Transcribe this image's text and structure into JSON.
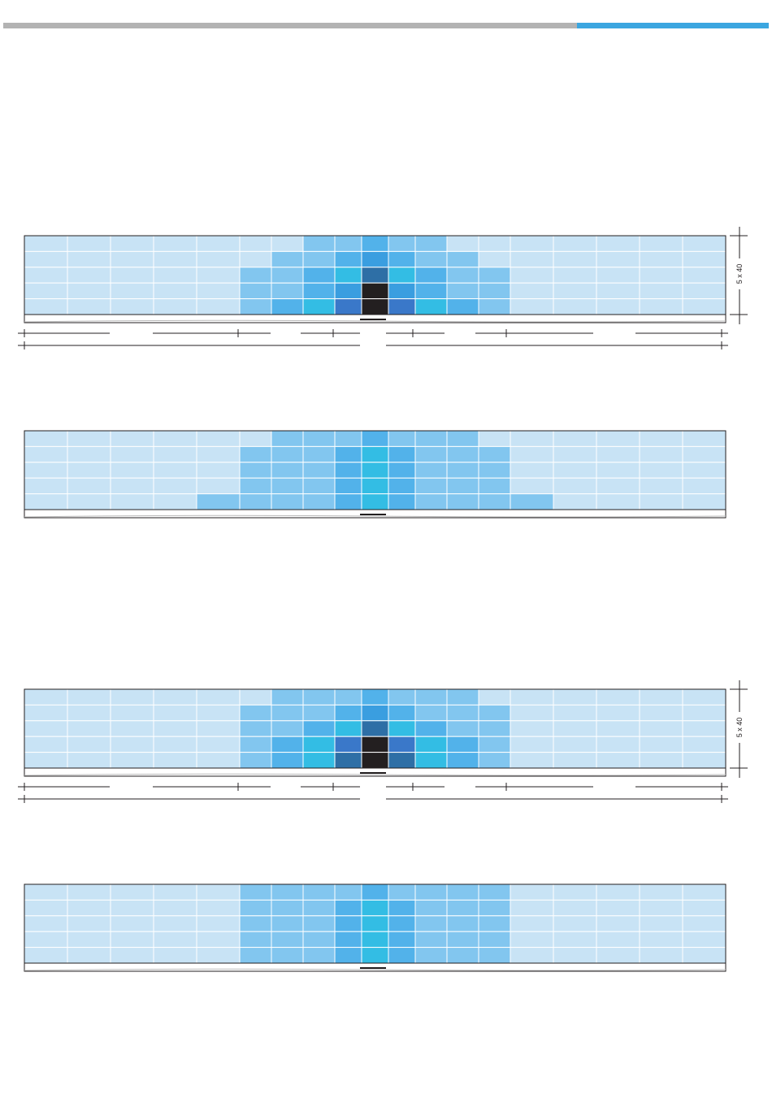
{
  "colors": {
    "top_bar_grey": "#b3b3b3",
    "top_bar_blue": "#3ba6e0",
    "outline": "#231f20"
  },
  "palette": {
    "0": "#c8e3f5",
    "1": "#82c6ef",
    "2": "#52b2ea",
    "3": "#33bde4",
    "4": "#3a9ee0",
    "5": "#3a78c9",
    "6": "#2e6fa6",
    "7": "#231f20"
  },
  "diagrams": [
    {
      "dimension_label": "5 x 40",
      "show_dimension": true,
      "show_baseline_lines": true,
      "grid": [
        [
          0,
          0,
          0,
          0,
          0,
          0,
          0,
          1,
          1,
          2,
          1,
          1,
          0,
          0,
          0,
          0,
          0,
          0,
          0
        ],
        [
          0,
          0,
          0,
          0,
          0,
          0,
          1,
          1,
          2,
          4,
          2,
          1,
          1,
          0,
          0,
          0,
          0,
          0,
          0
        ],
        [
          0,
          0,
          0,
          0,
          0,
          1,
          1,
          2,
          3,
          6,
          3,
          2,
          1,
          1,
          0,
          0,
          0,
          0,
          0
        ],
        [
          0,
          0,
          0,
          0,
          0,
          1,
          1,
          2,
          4,
          7,
          4,
          2,
          1,
          1,
          0,
          0,
          0,
          0,
          0
        ],
        [
          0,
          0,
          0,
          0,
          0,
          1,
          2,
          3,
          5,
          7,
          5,
          3,
          2,
          1,
          0,
          0,
          0,
          0,
          0
        ]
      ]
    },
    {
      "dimension_label": "",
      "show_dimension": false,
      "show_baseline_lines": false,
      "grid": [
        [
          0,
          0,
          0,
          0,
          0,
          0,
          1,
          1,
          1,
          2,
          1,
          1,
          1,
          0,
          0,
          0,
          0,
          0,
          0
        ],
        [
          0,
          0,
          0,
          0,
          0,
          1,
          1,
          1,
          2,
          3,
          2,
          1,
          1,
          1,
          0,
          0,
          0,
          0,
          0
        ],
        [
          0,
          0,
          0,
          0,
          0,
          1,
          1,
          1,
          2,
          3,
          2,
          1,
          1,
          1,
          0,
          0,
          0,
          0,
          0
        ],
        [
          0,
          0,
          0,
          0,
          0,
          1,
          1,
          1,
          2,
          3,
          2,
          1,
          1,
          1,
          0,
          0,
          0,
          0,
          0
        ],
        [
          0,
          0,
          0,
          0,
          1,
          1,
          1,
          1,
          2,
          3,
          2,
          1,
          1,
          1,
          1,
          0,
          0,
          0,
          0
        ]
      ]
    },
    {
      "dimension_label": "5 x 40",
      "show_dimension": true,
      "show_baseline_lines": true,
      "grid": [
        [
          0,
          0,
          0,
          0,
          0,
          0,
          1,
          1,
          1,
          2,
          1,
          1,
          1,
          0,
          0,
          0,
          0,
          0,
          0
        ],
        [
          0,
          0,
          0,
          0,
          0,
          1,
          1,
          1,
          2,
          4,
          2,
          1,
          1,
          1,
          0,
          0,
          0,
          0,
          0
        ],
        [
          0,
          0,
          0,
          0,
          0,
          1,
          1,
          2,
          3,
          6,
          3,
          2,
          1,
          1,
          0,
          0,
          0,
          0,
          0
        ],
        [
          0,
          0,
          0,
          0,
          0,
          1,
          2,
          3,
          5,
          7,
          5,
          3,
          2,
          1,
          0,
          0,
          0,
          0,
          0
        ],
        [
          0,
          0,
          0,
          0,
          0,
          1,
          2,
          3,
          6,
          7,
          6,
          3,
          2,
          1,
          0,
          0,
          0,
          0,
          0
        ]
      ]
    },
    {
      "dimension_label": "",
      "show_dimension": false,
      "show_baseline_lines": false,
      "grid": [
        [
          0,
          0,
          0,
          0,
          0,
          1,
          1,
          1,
          1,
          2,
          1,
          1,
          1,
          1,
          0,
          0,
          0,
          0,
          0
        ],
        [
          0,
          0,
          0,
          0,
          0,
          1,
          1,
          1,
          2,
          3,
          2,
          1,
          1,
          1,
          0,
          0,
          0,
          0,
          0
        ],
        [
          0,
          0,
          0,
          0,
          0,
          1,
          1,
          1,
          2,
          3,
          2,
          1,
          1,
          1,
          0,
          0,
          0,
          0,
          0
        ],
        [
          0,
          0,
          0,
          0,
          0,
          1,
          1,
          1,
          2,
          3,
          2,
          1,
          1,
          1,
          0,
          0,
          0,
          0,
          0
        ],
        [
          0,
          0,
          0,
          0,
          0,
          1,
          1,
          1,
          2,
          3,
          2,
          1,
          1,
          1,
          0,
          0,
          0,
          0,
          0
        ]
      ]
    }
  ]
}
